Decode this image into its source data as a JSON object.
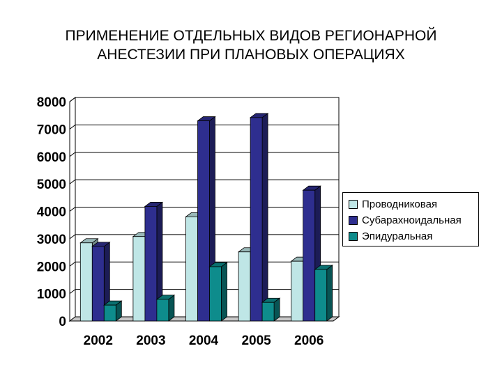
{
  "title": {
    "line1": "ПРИМЕНЕНИЕ ОТДЕЛЬНЫХ ВИДОВ РЕГИОНАРНОЙ",
    "line2": "АНЕСТЕЗИИ ПРИ ПЛАНОВЫХ ОПЕРАЦИЯХ"
  },
  "chart_data": {
    "type": "bar",
    "style": "3d-clustered",
    "title": "ПРИМЕНЕНИЕ ОТДЕЛЬНЫХ ВИДОВ РЕГИОНАРНОЙ АНЕСТЕЗИИ ПРИ ПЛАНОВЫХ ОПЕРАЦИЯХ",
    "xlabel": "",
    "ylabel": "",
    "categories": [
      "2002",
      "2003",
      "2004",
      "2005",
      "2006"
    ],
    "ylim": [
      0,
      8000
    ],
    "yticks": [
      "0",
      "1000",
      "2000",
      "3000",
      "4000",
      "5000",
      "6000",
      "7000",
      "8000"
    ],
    "grid": true,
    "legend_position": "right",
    "series": [
      {
        "name": "Проводниковая",
        "color": "#bfe6e6",
        "values": [
          2850,
          3080,
          3800,
          2520,
          2180
        ]
      },
      {
        "name": "Субарахноидальная",
        "color": "#2e2e8f",
        "values": [
          2720,
          4180,
          7300,
          7420,
          4770
        ]
      },
      {
        "name": "Эпидуральная",
        "color": "#0e8c8c",
        "values": [
          580,
          790,
          1980,
          680,
          1880
        ]
      }
    ]
  }
}
